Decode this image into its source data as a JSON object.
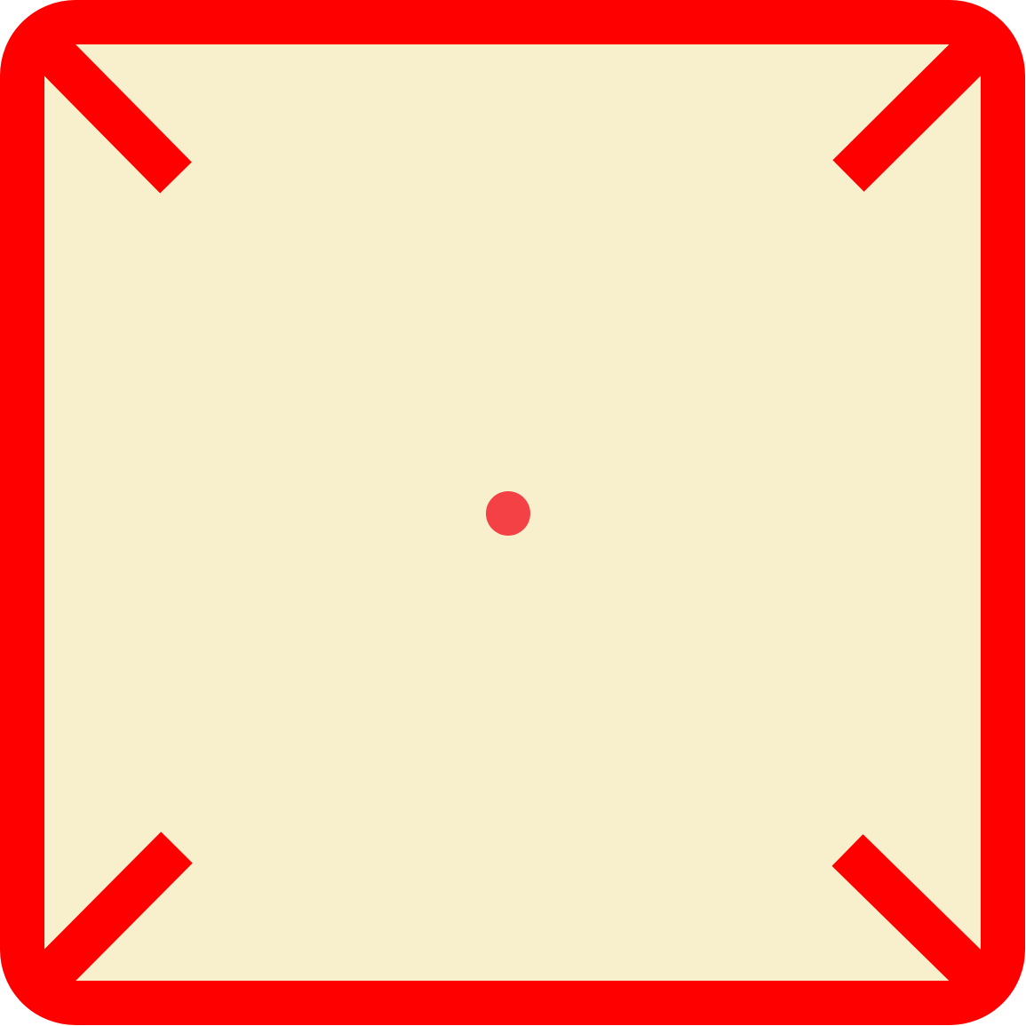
{
  "icon": {
    "name": "fullscreen-expand-icon",
    "colors": {
      "frame": "#ff0000",
      "fill": "#f8efcd",
      "center_dot": "#f34145"
    }
  }
}
